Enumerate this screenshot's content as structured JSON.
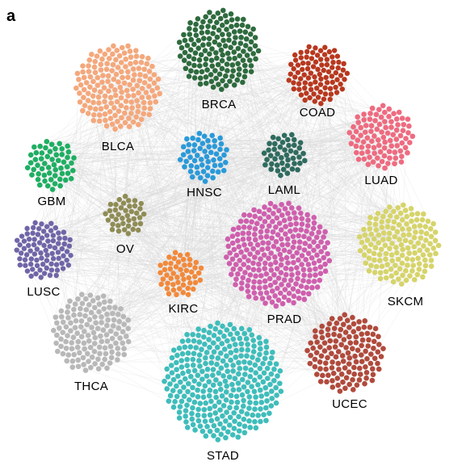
{
  "panel_letter": "a",
  "clusters": [
    {
      "id": "brca",
      "label": "BRCA",
      "color": "#2e6b3e"
    },
    {
      "id": "coad",
      "label": "COAD",
      "color": "#b8381e"
    },
    {
      "id": "blca",
      "label": "BLCA",
      "color": "#f4a87c"
    },
    {
      "id": "luad",
      "label": "LUAD",
      "color": "#ee6b80"
    },
    {
      "id": "gbm",
      "label": "GBM",
      "color": "#1fae63"
    },
    {
      "id": "hnsc",
      "label": "HNSC",
      "color": "#2a9ad9"
    },
    {
      "id": "laml",
      "label": "LAML",
      "color": "#2f6b5f"
    },
    {
      "id": "ov",
      "label": "OV",
      "color": "#8f8c55"
    },
    {
      "id": "skcm",
      "label": "SKCM",
      "color": "#d6d46a"
    },
    {
      "id": "lusc",
      "label": "LUSC",
      "color": "#6f66a8"
    },
    {
      "id": "kirc",
      "label": "KIRC",
      "color": "#f2893a"
    },
    {
      "id": "prad",
      "label": "PRAD",
      "color": "#cf5fae"
    },
    {
      "id": "thca",
      "label": "THCA",
      "color": "#b8b8b8"
    },
    {
      "id": "ucec",
      "label": "UCEC",
      "color": "#b04a3c"
    },
    {
      "id": "stad",
      "label": "STAD",
      "color": "#3fbdbb"
    }
  ],
  "edge_color": "#d9d9d9",
  "style": {
    "background": "#ffffff"
  }
}
